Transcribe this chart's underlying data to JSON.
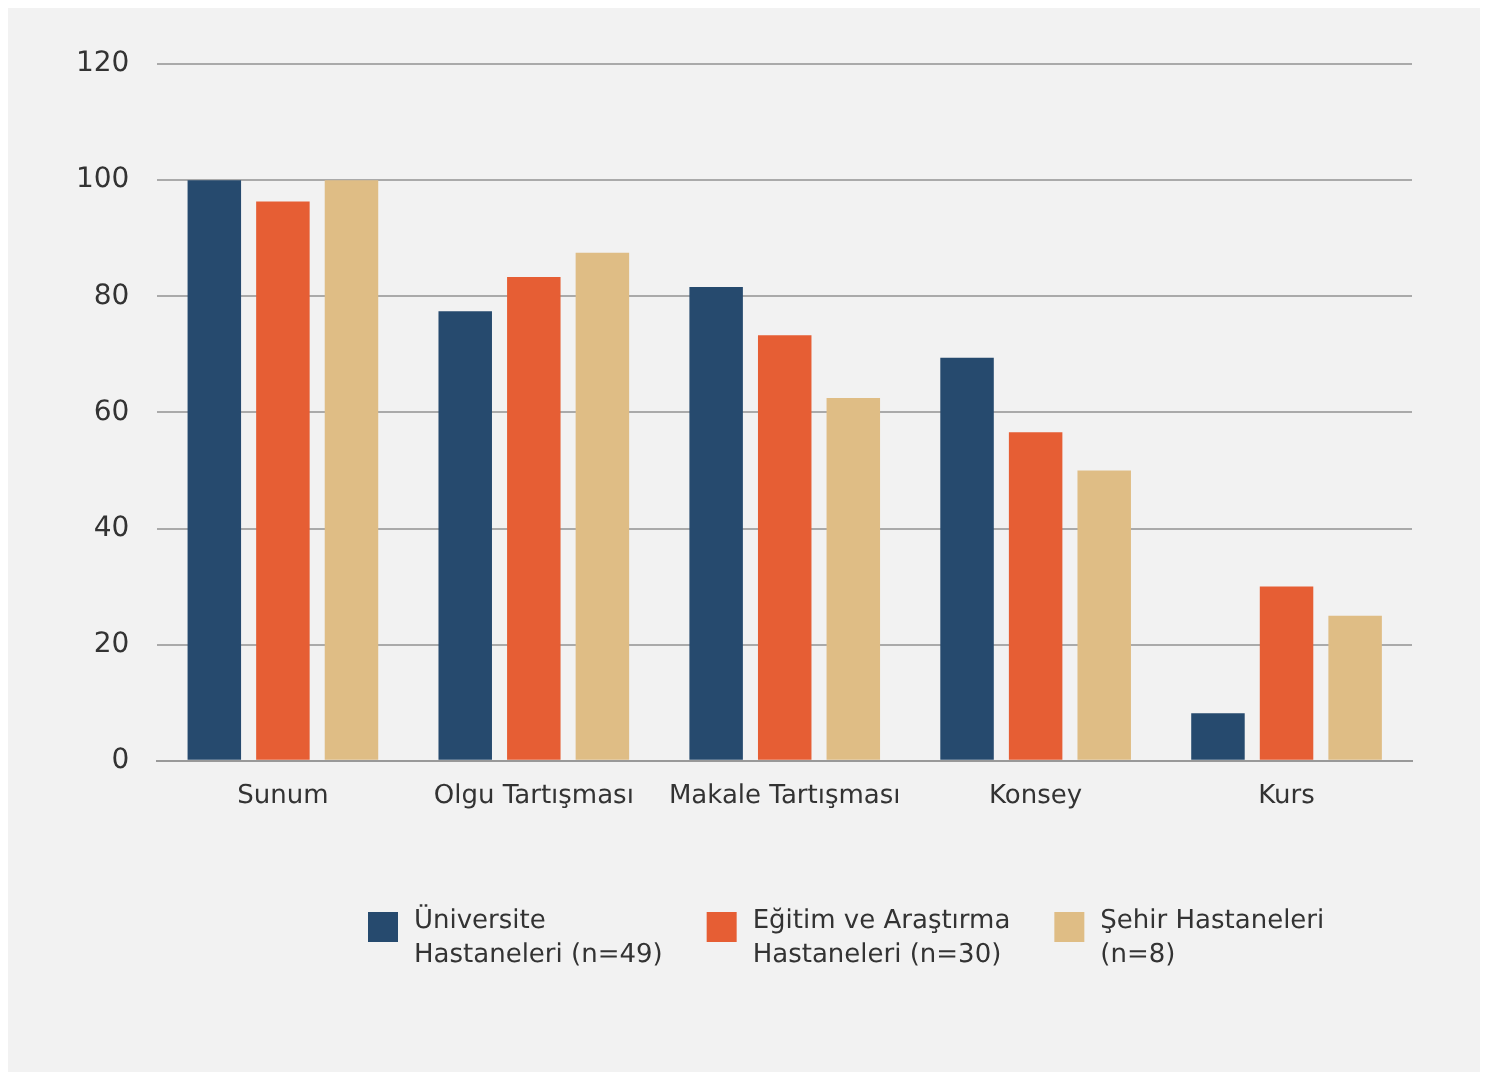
{
  "chart_data": {
    "type": "bar",
    "categories": [
      "Sunum",
      "Olgu Tartışması",
      "Makale Tartışması",
      "Konsey",
      "Kurs"
    ],
    "series": [
      {
        "name": "Üniversite Hastaneleri (n=49)",
        "color": "#264a6e",
        "values": [
          100,
          77.4,
          81.6,
          69.4,
          8.2
        ]
      },
      {
        "name": "Eğitim ve Araştırma Hastaneleri (n=30)",
        "color": "#e65e34",
        "values": [
          96.3,
          83.3,
          73.3,
          56.6,
          30
        ]
      },
      {
        "name": "Şehir Hastaneleri (n=8)",
        "color": "#dfbd85",
        "values": [
          100,
          87.5,
          62.5,
          50,
          25
        ]
      }
    ],
    "ylim": [
      0,
      120
    ],
    "yticks": [
      0,
      20,
      40,
      60,
      80,
      100,
      120
    ],
    "grid": "y",
    "legend": "bottom"
  }
}
